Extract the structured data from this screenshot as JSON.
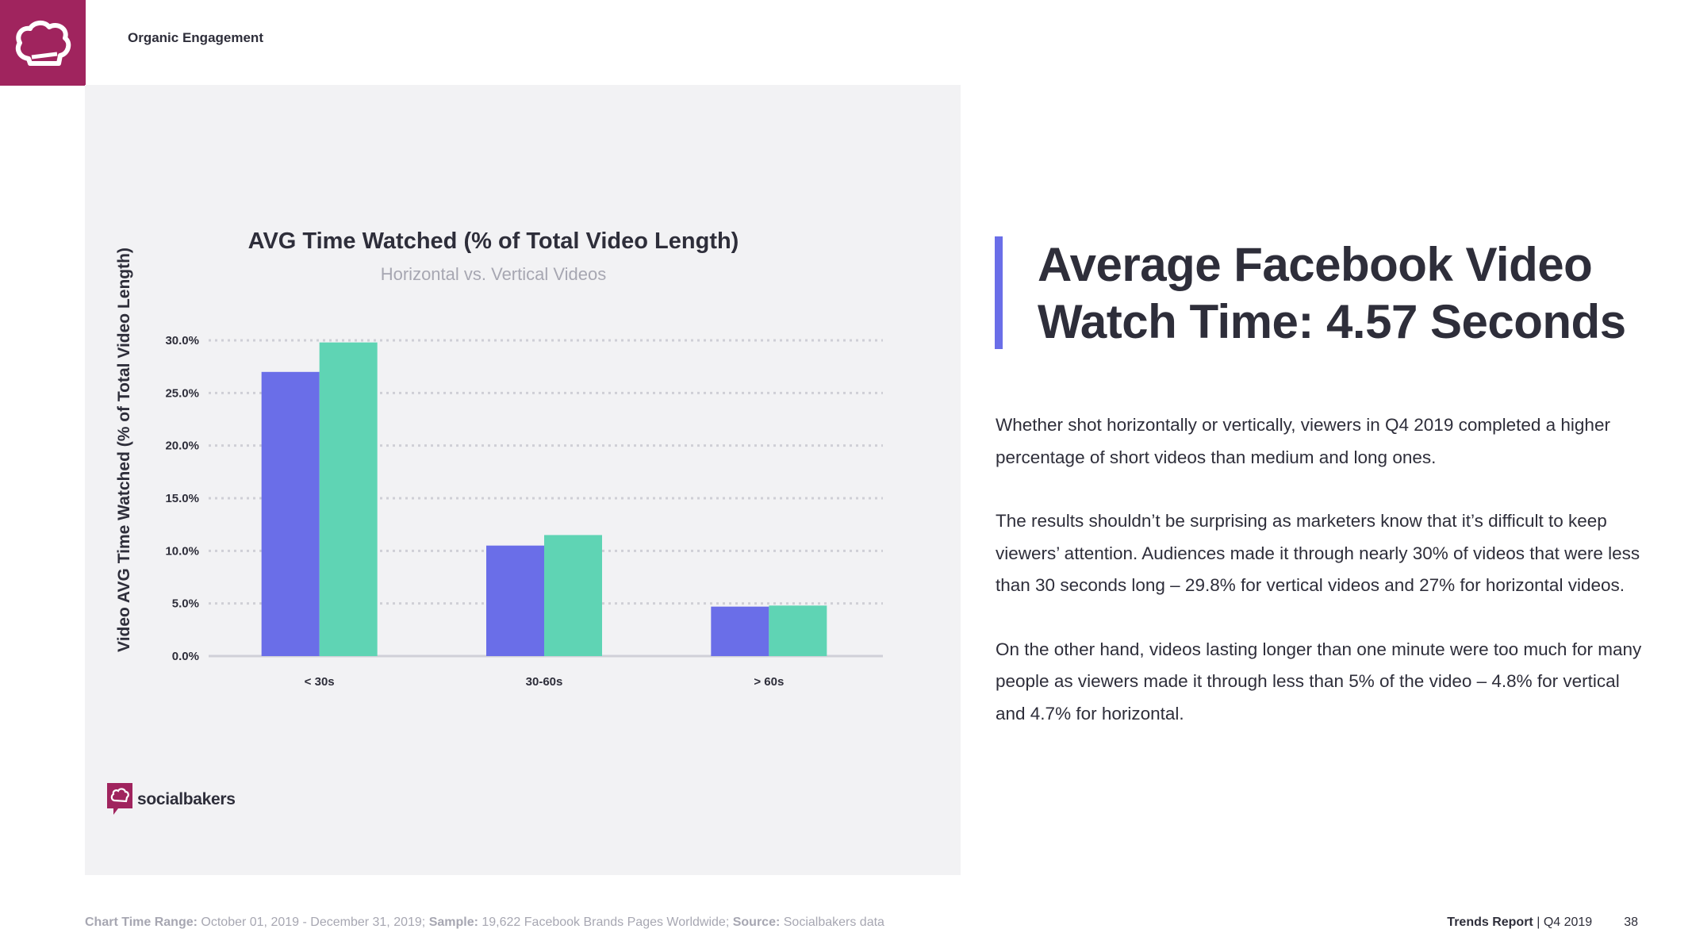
{
  "header": {
    "section_label": "Organic Engagement",
    "logo_icon": "chef-hat-icon",
    "brand_color": "#a0245e"
  },
  "chart_data": {
    "type": "bar",
    "title": "AVG Time Watched (% of Total Video Length)",
    "subtitle": "Horizontal vs. Vertical Videos",
    "ylabel": "Video AVG Time Watched (% of Total Video Length)",
    "xlabel": "",
    "categories": [
      "< 30s",
      "30-60s",
      "> 60s"
    ],
    "series": [
      {
        "values": [
          27.0,
          10.5,
          4.7
        ],
        "color": "#6a6ee8"
      },
      {
        "values": [
          29.8,
          11.5,
          4.8
        ],
        "color": "#5fd4b4"
      }
    ],
    "ylim": [
      0,
      30
    ],
    "yticks": [
      "0.0%",
      "5.0%",
      "10.0%",
      "15.0%",
      "20.0%",
      "25.0%",
      "30.0%"
    ],
    "grid": true
  },
  "brand": {
    "name": "socialbakers",
    "icon": "socialbakers-logo-icon"
  },
  "article": {
    "headline_line1": "Average Facebook Video",
    "headline_line2": "Watch Time: 4.57 Seconds",
    "accent_color": "#6a6ee8",
    "paragraph1": "Whether shot horizontally or vertically, viewers in Q4 2019 completed a higher percentage of short videos than medium and long ones.",
    "paragraph2": "The results shouldn’t be surprising as marketers know that it’s difficult to keep viewers’ attention. Audiences made it through nearly 30% of videos that were less than 30 seconds long – 29.8% for vertical videos and 27% for horizontal videos.",
    "paragraph3": "On the other hand, videos lasting longer than one minute were too much for many people as viewers made it through less than 5% of the video – 4.8% for vertical and 4.7% for horizontal."
  },
  "footer": {
    "range_label": "Chart Time Range:",
    "range_value": " October  01, 2019 - December 31, 2019; ",
    "sample_label": "Sample:",
    "sample_value": " 19,622 Facebook Brands Pages Worldwide; ",
    "source_label": "Source:",
    "source_value": " Socialbakers data",
    "report_name": "Trends Report",
    "report_period": " | Q4 2019",
    "page_number": "38"
  }
}
